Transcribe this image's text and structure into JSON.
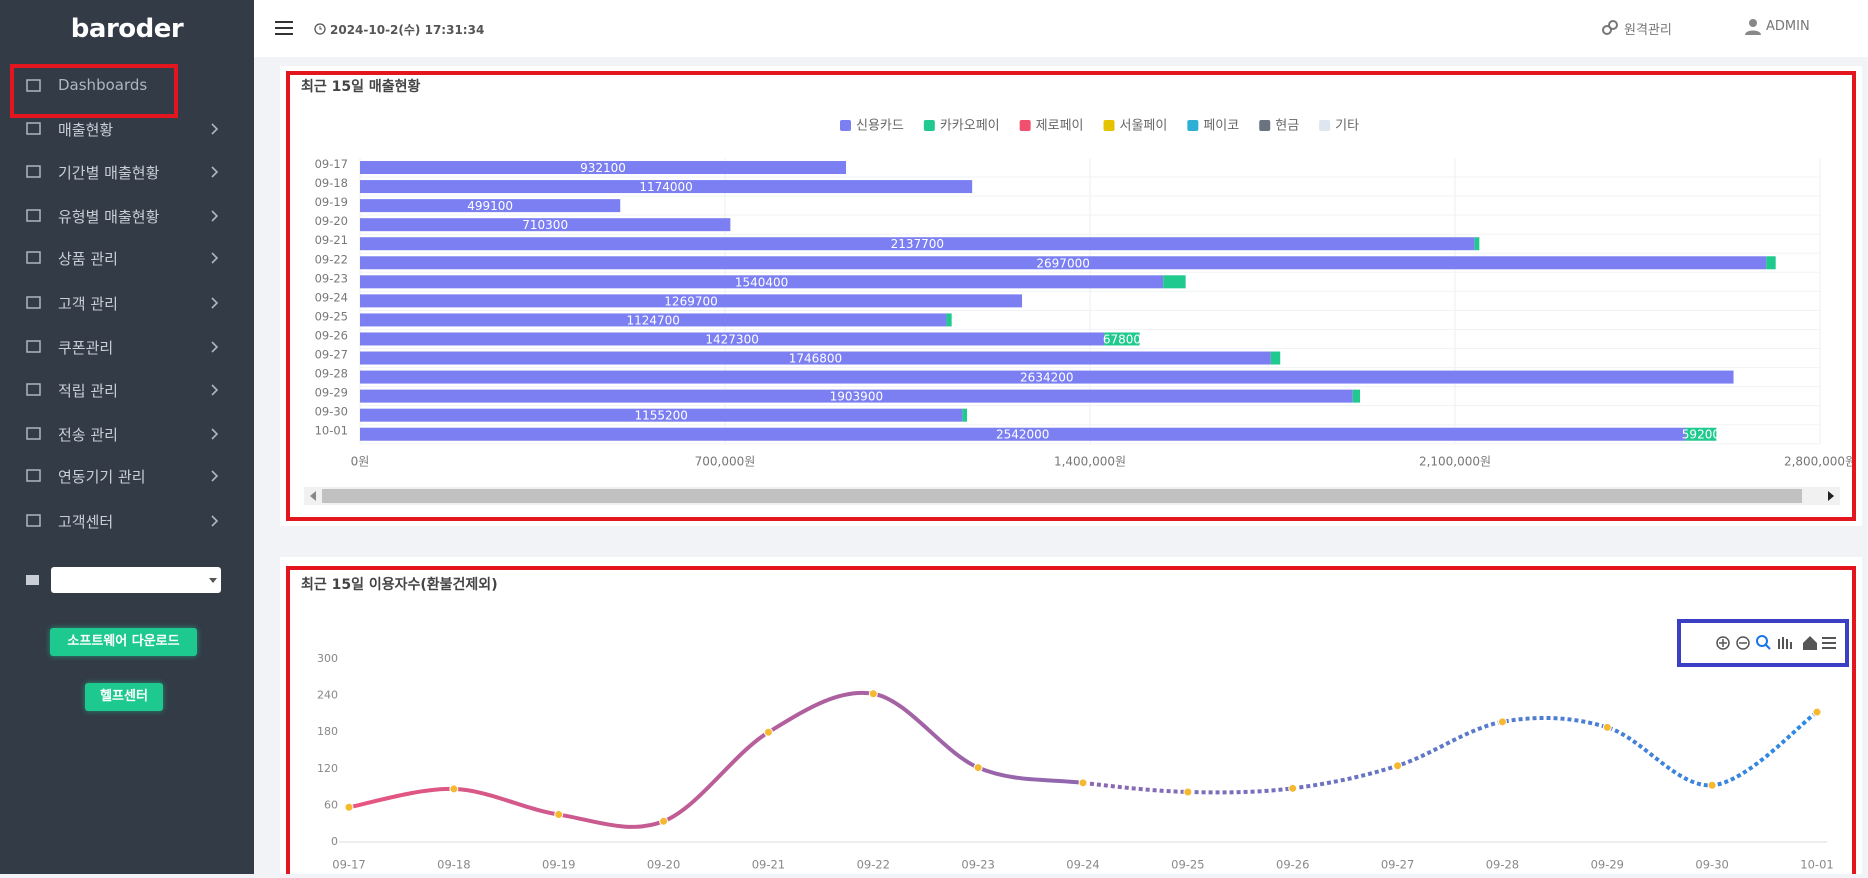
{
  "brand": "baroder",
  "header": {
    "datetime": "2024-10-2(수) 17:31:34",
    "remote": "원격관리",
    "user": "ADMIN"
  },
  "sidebar": {
    "menu": [
      "Dashboards",
      "매출현황",
      "기간별 매출현황",
      "유형별 매출현황",
      "상품 관리",
      "고객 관리",
      "쿠폰관리",
      "적립 관리",
      "전송 관리",
      "연동기기 관리",
      "고객센터"
    ],
    "buttons": [
      "소프트웨어 다운로드",
      "헬프센터"
    ]
  },
  "chart_data": [
    {
      "type": "bar",
      "orientation": "horizontal",
      "stacked": true,
      "title": "최근 15일 매출현황",
      "categories": [
        "09-17",
        "09-18",
        "09-19",
        "09-20",
        "09-21",
        "09-22",
        "09-23",
        "09-24",
        "09-25",
        "09-26",
        "09-27",
        "09-28",
        "09-29",
        "09-30",
        "10-01"
      ],
      "series": [
        {
          "name": "신용카드",
          "color": "#7b7ff2",
          "values": [
            932100,
            1174000,
            499100,
            710300,
            2137700,
            2697000,
            1540400,
            1269700,
            1124700,
            1427300,
            1746800,
            2634200,
            1903900,
            1155200,
            2542000
          ]
        },
        {
          "name": "카카오페이",
          "color": "#20c98e",
          "values": [
            0,
            0,
            0,
            0,
            9000,
            18000,
            43000,
            0,
            10000,
            67800,
            18000,
            0,
            14000,
            9000,
            59200
          ]
        },
        {
          "name": "제로페이",
          "color": "#f0506e",
          "values": [
            0,
            0,
            0,
            0,
            0,
            0,
            0,
            0,
            0,
            0,
            0,
            0,
            0,
            0,
            0
          ]
        },
        {
          "name": "서울페이",
          "color": "#e6c300",
          "values": [
            0,
            0,
            0,
            0,
            0,
            0,
            0,
            0,
            0,
            0,
            0,
            0,
            0,
            0,
            0
          ]
        },
        {
          "name": "페이코",
          "color": "#2eb0d6",
          "values": [
            0,
            0,
            0,
            0,
            0,
            0,
            0,
            0,
            0,
            0,
            0,
            0,
            0,
            0,
            0
          ]
        },
        {
          "name": "현금",
          "color": "#6b7280",
          "values": [
            0,
            0,
            0,
            0,
            0,
            0,
            0,
            0,
            0,
            0,
            0,
            0,
            0,
            0,
            0
          ]
        },
        {
          "name": "기타",
          "color": "#dfe6f0",
          "values": [
            0,
            0,
            0,
            0,
            0,
            0,
            0,
            0,
            0,
            0,
            0,
            0,
            0,
            0,
            0
          ]
        }
      ],
      "xlim": [
        0,
        2800000
      ],
      "xticks": [
        {
          "value": 0,
          "label": "0원"
        },
        {
          "value": 700000,
          "label": "700,000원"
        },
        {
          "value": 1400000,
          "label": "1,400,000원"
        },
        {
          "value": 2100000,
          "label": "2,100,000원"
        },
        {
          "value": 2800000,
          "label": "2,800,000원"
        }
      ],
      "grid": true,
      "legend": "top"
    },
    {
      "type": "line",
      "title": "최근 15일 이용자수(환불건제외)",
      "categories": [
        "09-17",
        "09-18",
        "09-19",
        "09-20",
        "09-21",
        "09-22",
        "09-23",
        "09-24",
        "09-25",
        "09-26",
        "09-27",
        "09-28",
        "09-29",
        "09-30",
        "10-01"
      ],
      "values": [
        57,
        87,
        45,
        34,
        180,
        243,
        122,
        97,
        82,
        88,
        125,
        197,
        188,
        93,
        213
      ],
      "ylim": [
        0,
        300
      ],
      "yticks": [
        0,
        60,
        120,
        180,
        240,
        300
      ],
      "colors": [
        "#e8557f",
        "#8e67b0",
        "#2b8ae5"
      ],
      "dotted_from": "09-24",
      "marker_color": "#f5b82e"
    }
  ]
}
